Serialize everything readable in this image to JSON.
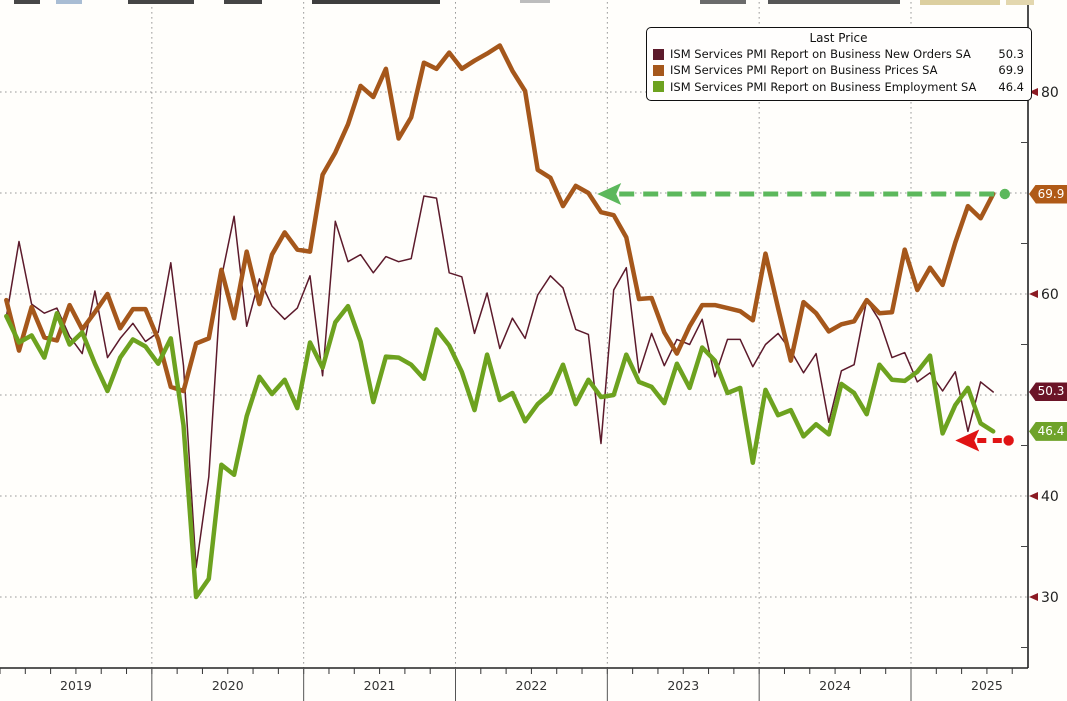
{
  "colors": {
    "new_orders": "#5c1a2b",
    "prices": "#a5571b",
    "employment": "#6da21f",
    "green_arrow": "#5cb85c",
    "red_arrow": "#e01414",
    "axis_tick_arrow": "#8b1a22",
    "gridline": "#9a9a9a",
    "axis_line": "#222222"
  },
  "legend": {
    "title": "Last Price",
    "items": [
      {
        "label": "ISM Services PMI Report on Business New Orders SA",
        "value": "50.3",
        "color": "#5c1a2b"
      },
      {
        "label": "ISM Services PMI Report on Business Prices SA",
        "value": "69.9",
        "color": "#a5571b"
      },
      {
        "label": "ISM Services PMI Report on Business Employment SA",
        "value": "46.4",
        "color": "#6da21f"
      }
    ]
  },
  "badges": [
    {
      "value": "69.9",
      "level": 69.9,
      "color": "#b05a17"
    },
    {
      "value": "50.3",
      "level": 50.3,
      "color": "#6b1427"
    },
    {
      "value": "46.4",
      "level": 46.4,
      "color": "#6fa32a"
    }
  ],
  "chart_data": {
    "type": "line",
    "title": "",
    "x_unit": "month",
    "x_start": "2019-01",
    "x_end": "2025-07",
    "x_tick_labels": [
      "2019",
      "2020",
      "2021",
      "2022",
      "2023",
      "2024",
      "2025"
    ],
    "grid": true,
    "legend_position": "top-right",
    "y_axis": {
      "side": "right",
      "visible_range": [
        24,
        87
      ],
      "major_ticks": [
        80,
        70,
        60,
        50,
        40,
        30
      ],
      "labeled_ticks": [
        {
          "value": 80,
          "label": "80"
        },
        {
          "value": 60,
          "label": "60"
        },
        {
          "value": 40,
          "label": "40"
        },
        {
          "value": 30,
          "label": "30"
        }
      ],
      "minor_ticks": [
        75,
        65,
        55,
        45,
        35,
        25
      ],
      "arrow_color": "#8b1a22"
    },
    "series": [
      {
        "id": "new-orders",
        "name": "ISM Services PMI Report on Business New Orders SA",
        "color": "#5c1a2b",
        "line_width": 1.5,
        "last_value": 50.3,
        "values": [
          57.7,
          65.2,
          59.0,
          58.1,
          58.6,
          55.8,
          54.1,
          60.3,
          53.7,
          55.6,
          57.1,
          55.3,
          56.2,
          63.1,
          52.9,
          32.9,
          41.9,
          61.6,
          67.7,
          56.8,
          61.5,
          58.8,
          57.5,
          58.6,
          61.8,
          51.9,
          67.2,
          63.2,
          63.9,
          62.1,
          63.7,
          63.2,
          63.5,
          69.7,
          69.5,
          62.1,
          61.7,
          56.1,
          60.1,
          54.6,
          57.6,
          55.6,
          59.9,
          61.8,
          60.6,
          56.5,
          56.0,
          45.2,
          60.4,
          62.6,
          52.2,
          56.1,
          52.9,
          55.5,
          55.0,
          57.5,
          51.8,
          55.5,
          55.5,
          52.8,
          55.0,
          56.1,
          54.4,
          52.2,
          54.1,
          47.3,
          52.4,
          53.0,
          59.4,
          57.4,
          53.7,
          54.2,
          51.3,
          52.2,
          50.4,
          52.3,
          46.4,
          51.3,
          50.3
        ]
      },
      {
        "id": "prices",
        "name": "ISM Services PMI Report on Business Prices SA",
        "color": "#a5571b",
        "line_width": 4.5,
        "last_value": 69.9,
        "values": [
          59.4,
          54.4,
          58.7,
          55.7,
          55.4,
          58.9,
          56.5,
          58.2,
          60.0,
          56.6,
          58.5,
          58.5,
          55.5,
          50.8,
          50.4,
          55.1,
          55.6,
          62.4,
          57.6,
          64.2,
          59.0,
          63.9,
          66.1,
          64.4,
          64.2,
          71.8,
          74.0,
          76.8,
          80.6,
          79.5,
          82.3,
          75.4,
          77.5,
          82.9,
          82.3,
          83.9,
          82.3,
          83.1,
          83.8,
          84.6,
          82.1,
          80.1,
          72.3,
          71.5,
          68.7,
          70.7,
          70.0,
          68.1,
          67.8,
          65.6,
          59.5,
          59.6,
          56.2,
          54.1,
          56.8,
          58.9,
          58.9,
          58.6,
          58.3,
          57.4,
          64.0,
          58.6,
          53.4,
          59.2,
          58.1,
          56.3,
          57.0,
          57.3,
          59.4,
          58.1,
          58.2,
          64.4,
          60.4,
          62.6,
          60.9,
          65.1,
          68.7,
          67.5,
          69.9
        ]
      },
      {
        "id": "employment",
        "name": "ISM Services PMI Report on Business Employment SA",
        "color": "#6da21f",
        "line_width": 4.5,
        "last_value": 46.4,
        "values": [
          57.8,
          55.2,
          55.9,
          53.7,
          58.1,
          55.0,
          56.2,
          53.1,
          50.4,
          53.7,
          55.5,
          54.8,
          53.1,
          55.6,
          47.0,
          30.0,
          31.8,
          43.1,
          42.1,
          47.9,
          51.8,
          50.1,
          51.5,
          48.7,
          55.2,
          52.7,
          57.2,
          58.8,
          55.3,
          49.3,
          53.8,
          53.7,
          53.0,
          51.6,
          56.5,
          54.9,
          52.3,
          48.5,
          54.0,
          49.5,
          50.2,
          47.4,
          49.1,
          50.2,
          53.0,
          49.1,
          51.5,
          49.8,
          50.0,
          54.0,
          51.3,
          50.8,
          49.2,
          53.1,
          50.7,
          54.7,
          53.4,
          50.2,
          50.7,
          43.3,
          50.5,
          48.0,
          48.5,
          45.9,
          47.1,
          46.1,
          51.1,
          50.2,
          48.1,
          53.0,
          51.5,
          51.4,
          52.3,
          53.9,
          46.2,
          49.0,
          50.7,
          47.2,
          46.4
        ]
      }
    ],
    "annotations": [
      {
        "id": "prices-retrace-arrow",
        "type": "dashed_arrow_left",
        "color": "#5cb85c",
        "level": 69.9,
        "tip_month_index": 46.7,
        "end_month_index": 78.6,
        "dash": "15 9"
      },
      {
        "id": "employment-drop-arrow",
        "type": "dashed_arrow_left",
        "color": "#e01414",
        "level": 45.5,
        "tip_month_index": 75.0,
        "end_month_index": 78.9,
        "dash": "9 6.5"
      }
    ]
  }
}
